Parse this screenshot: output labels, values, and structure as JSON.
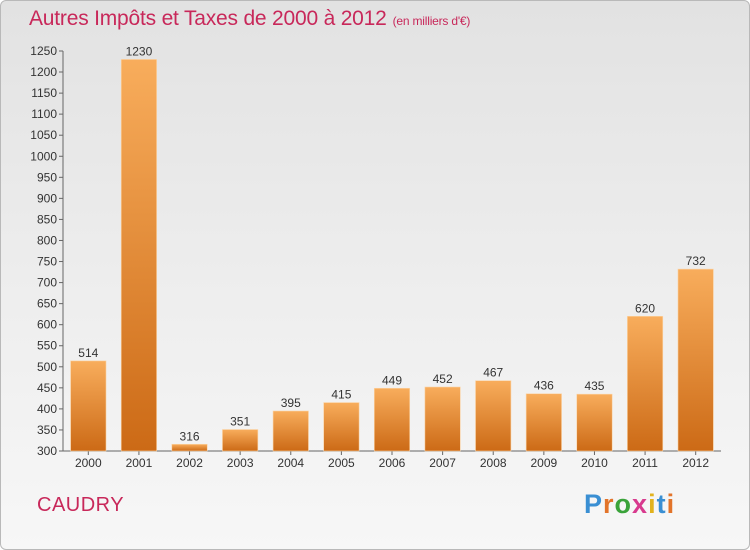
{
  "title": "Autres Impôts et Taxes de 2000 à 2012",
  "subtitle": "(en milliers d'€)",
  "city": "CAUDRY",
  "logo": {
    "text": "Proxiti",
    "letters": [
      "P",
      "r",
      "o",
      "x",
      "i",
      "t",
      "i"
    ],
    "colors": [
      "#3a8fd3",
      "#e2742a",
      "#3aa33a",
      "#d83a8e",
      "#e2b21c",
      "#3a8fd3",
      "#e2742a"
    ]
  },
  "colors": {
    "bar_light": "#f8ad5c",
    "bar_dark": "#cc6a16",
    "title": "#c8285a"
  },
  "chart_data": {
    "type": "bar",
    "categories": [
      "2000",
      "2001",
      "2002",
      "2003",
      "2004",
      "2005",
      "2006",
      "2007",
      "2008",
      "2009",
      "2010",
      "2011",
      "2012"
    ],
    "values": [
      514,
      1230,
      316,
      351,
      395,
      415,
      449,
      452,
      467,
      436,
      435,
      620,
      732
    ],
    "ylim": [
      300,
      1250
    ],
    "yticks": [
      300,
      350,
      400,
      450,
      500,
      550,
      600,
      650,
      700,
      750,
      800,
      850,
      900,
      950,
      1000,
      1050,
      1100,
      1150,
      1200,
      1250
    ],
    "grid": false,
    "legend": "none"
  }
}
